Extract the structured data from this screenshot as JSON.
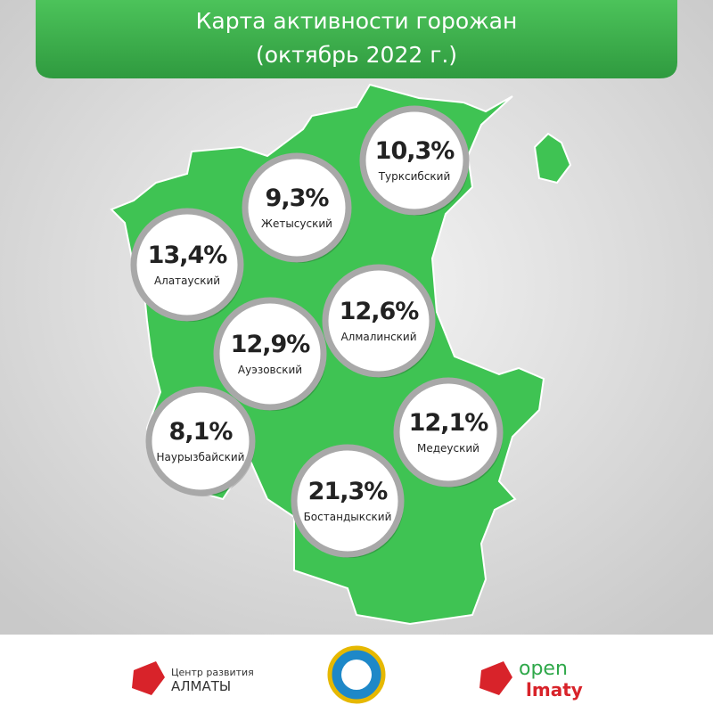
{
  "header": {
    "title_line1": "Карта активности горожан",
    "title_line2": "(октябрь 2022 г.)"
  },
  "districts": [
    {
      "value": "10,3%",
      "name": "Турксибский"
    },
    {
      "value": "9,3%",
      "name": "Жетысуский"
    },
    {
      "value": "13,4%",
      "name": "Алатауский"
    },
    {
      "value": "12,6%",
      "name": "Алмалинский"
    },
    {
      "value": "12,9%",
      "name": "Ауэзовский"
    },
    {
      "value": "8,1%",
      "name": "Наурызбайский"
    },
    {
      "value": "12,1%",
      "name": "Медеуский"
    },
    {
      "value": "21,3%",
      "name": "Бостандыкский"
    }
  ],
  "footer": {
    "left_logo_line1": "Центр развития",
    "left_logo_line2": "АЛМАТЫ",
    "right_logo_line1": "open",
    "right_logo_line2": "lmaty"
  }
}
